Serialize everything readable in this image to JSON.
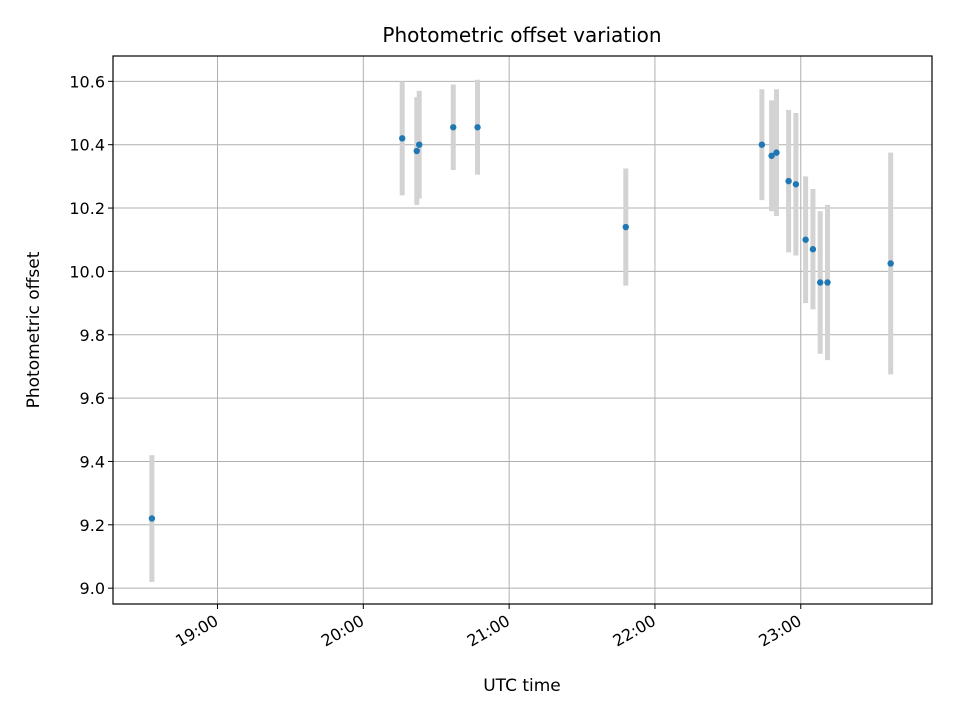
{
  "chart_data": {
    "type": "scatter",
    "title": "Photometric offset variation",
    "xlabel": "UTC time",
    "ylabel": "Photometric offset",
    "xlim": [
      "18:17",
      "23:54"
    ],
    "ylim": [
      8.95,
      10.68
    ],
    "x_ticks": [
      "19:00",
      "20:00",
      "21:00",
      "22:00",
      "23:00"
    ],
    "y_ticks": [
      "9.0",
      "9.2",
      "9.4",
      "9.6",
      "9.8",
      "10.0",
      "10.2",
      "10.4",
      "10.6"
    ],
    "grid": true,
    "colors": {
      "point": "#1f77b4",
      "errorbar": "#d3d3d3",
      "grid": "#b0b0b0"
    },
    "points": [
      {
        "t": "18:33",
        "y": 9.22,
        "err": 0.2
      },
      {
        "t": "20:16",
        "y": 10.42,
        "err": 0.18
      },
      {
        "t": "20:22",
        "y": 10.38,
        "err": 0.17
      },
      {
        "t": "20:23",
        "y": 10.4,
        "err": 0.17
      },
      {
        "t": "20:37",
        "y": 10.455,
        "err": 0.135
      },
      {
        "t": "20:47",
        "y": 10.455,
        "err": 0.15
      },
      {
        "t": "21:48",
        "y": 10.14,
        "err": 0.185
      },
      {
        "t": "22:44",
        "y": 10.4,
        "err": 0.175
      },
      {
        "t": "22:48",
        "y": 10.365,
        "err": 0.175
      },
      {
        "t": "22:50",
        "y": 10.375,
        "err": 0.2
      },
      {
        "t": "22:55",
        "y": 10.285,
        "err": 0.225
      },
      {
        "t": "22:58",
        "y": 10.275,
        "err": 0.225
      },
      {
        "t": "23:02",
        "y": 10.1,
        "err": 0.2
      },
      {
        "t": "23:05",
        "y": 10.07,
        "err": 0.19
      },
      {
        "t": "23:08",
        "y": 9.965,
        "err": 0.225
      },
      {
        "t": "23:11",
        "y": 9.965,
        "err": 0.245
      },
      {
        "t": "23:37",
        "y": 10.025,
        "err": 0.35
      }
    ]
  }
}
